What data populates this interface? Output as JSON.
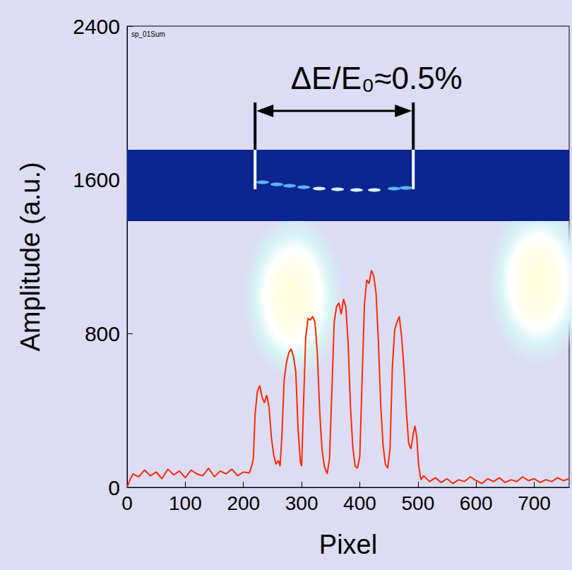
{
  "chart_data": {
    "type": "line",
    "title": "sp_01Sum",
    "x_label": "Pixel",
    "y_label": "Amplitude (a.u.)",
    "xlim": [
      0,
      760
    ],
    "xticks": [
      0,
      100,
      200,
      300,
      400,
      500,
      600,
      700
    ],
    "ylim": [
      0,
      2400
    ],
    "yticks": [
      0,
      800,
      1600,
      2400
    ],
    "grid": false,
    "color": "#ff2a00",
    "x": [
      0,
      5,
      10,
      20,
      30,
      40,
      50,
      60,
      70,
      80,
      90,
      100,
      110,
      120,
      130,
      140,
      150,
      160,
      170,
      180,
      190,
      200,
      210,
      215,
      217,
      220,
      224,
      228,
      232,
      236,
      240,
      244,
      248,
      252,
      256,
      260,
      263,
      266,
      270,
      274,
      278,
      282,
      286,
      290,
      294,
      298,
      300,
      303,
      307,
      311,
      315,
      319,
      323,
      327,
      331,
      335,
      339,
      344,
      348,
      352,
      356,
      360,
      364,
      368,
      372,
      376,
      380,
      384,
      388,
      392,
      396,
      400,
      404,
      408,
      412,
      416,
      420,
      424,
      428,
      432,
      436,
      440,
      444,
      448,
      452,
      456,
      460,
      464,
      468,
      472,
      476,
      480,
      484,
      488,
      492,
      495,
      498,
      501,
      505,
      510,
      520,
      530,
      540,
      550,
      560,
      570,
      580,
      590,
      600,
      610,
      620,
      630,
      640,
      650,
      660,
      670,
      680,
      690,
      700,
      710,
      720,
      730,
      740,
      750,
      760
    ],
    "values": [
      0,
      40,
      70,
      55,
      90,
      60,
      80,
      45,
      95,
      65,
      85,
      50,
      90,
      70,
      60,
      100,
      55,
      85,
      70,
      95,
      60,
      80,
      75,
      120,
      150,
      380,
      500,
      530,
      470,
      440,
      480,
      420,
      260,
      170,
      120,
      140,
      110,
      260,
      560,
      650,
      700,
      720,
      680,
      600,
      300,
      130,
      110,
      400,
      780,
      880,
      870,
      890,
      860,
      700,
      400,
      200,
      110,
      70,
      150,
      500,
      860,
      940,
      960,
      900,
      980,
      940,
      750,
      420,
      210,
      110,
      100,
      160,
      560,
      950,
      1080,
      1060,
      1130,
      1100,
      1010,
      760,
      430,
      220,
      120,
      100,
      200,
      620,
      820,
      860,
      890,
      780,
      620,
      400,
      230,
      200,
      280,
      320,
      260,
      120,
      40,
      60,
      30,
      50,
      25,
      45,
      20,
      40,
      30,
      55,
      35,
      20,
      45,
      30,
      50,
      25,
      40,
      30,
      55,
      35,
      45,
      25,
      40,
      30,
      50,
      35,
      45
    ],
    "annotations": [
      {
        "text": "ΔE/E₀≈0.5%",
        "x": [
          220,
          492
        ]
      }
    ]
  }
}
